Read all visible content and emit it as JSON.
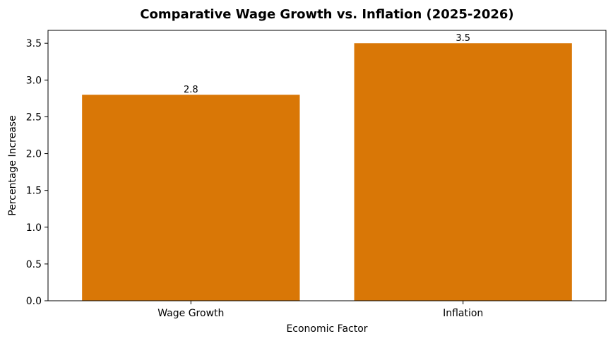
{
  "chart_data": {
    "type": "bar",
    "title": "Comparative Wage Growth vs. Inflation (2025-2026)",
    "xlabel": "Economic Factor",
    "ylabel": "Percentage Increase",
    "categories": [
      "Wage Growth",
      "Inflation"
    ],
    "values": [
      2.8,
      3.5
    ],
    "data_labels": [
      "2.8",
      "3.5"
    ],
    "ylim": [
      0,
      3.675
    ],
    "yticks": [
      0.0,
      0.5,
      1.0,
      1.5,
      2.0,
      2.5,
      3.0,
      3.5
    ],
    "ytick_labels": [
      "0.0",
      "0.5",
      "1.0",
      "1.5",
      "2.0",
      "2.5",
      "3.0",
      "3.5"
    ],
    "bar_color": "#d97706",
    "grid": false,
    "legend": "none"
  }
}
